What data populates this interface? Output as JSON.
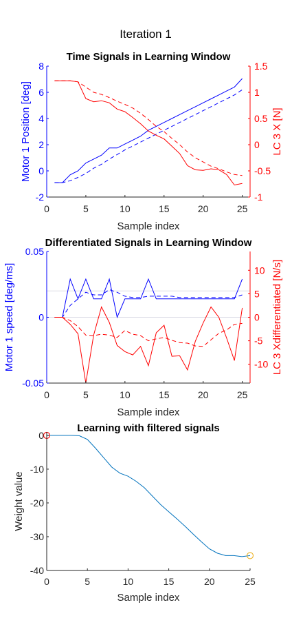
{
  "figure_title": "Iteration 1",
  "colors": {
    "left_axis": "#0000ff",
    "right_axis": "#ff0000",
    "weight_line": "#0072bd",
    "start_marker": "#ff0000",
    "end_marker": "#edb120",
    "axes": "#262626",
    "zero_line": "#dcdce6"
  },
  "chart_data": [
    {
      "type": "line",
      "title": "Time Signals in Learning Window",
      "xlabel": "Sample index",
      "ylabel": "Motor 1 Position [deg]",
      "y2label": "LC 3 X [N]",
      "xlim": [
        0,
        26
      ],
      "ylim": [
        -2,
        8
      ],
      "y2lim": [
        -1,
        1.5
      ],
      "xticks": [
        "0",
        "5",
        "10",
        "15",
        "20",
        "25"
      ],
      "yticks": [
        "-2",
        "0",
        "2",
        "4",
        "6",
        "8"
      ],
      "y2ticks": [
        "-1",
        "-0.5",
        "0",
        "0.5",
        "1",
        "1.5"
      ],
      "x": [
        1,
        2,
        3,
        4,
        5,
        6,
        7,
        8,
        9,
        10,
        11,
        12,
        13,
        14,
        15,
        16,
        17,
        18,
        19,
        20,
        21,
        22,
        23,
        24,
        25
      ],
      "series": [
        {
          "axis": "left",
          "style": "solid",
          "values": [
            -0.9,
            -0.9,
            -0.3,
            0.0,
            0.6,
            0.9,
            1.2,
            1.75,
            1.75,
            2.05,
            2.35,
            2.65,
            3.1,
            3.4,
            3.7,
            4.0,
            4.3,
            4.6,
            4.9,
            5.2,
            5.5,
            5.8,
            6.1,
            6.4,
            7.05
          ]
        },
        {
          "axis": "left",
          "style": "dashed",
          "values": [
            -0.9,
            -0.9,
            -0.75,
            -0.5,
            -0.2,
            0.2,
            0.5,
            0.9,
            1.25,
            1.6,
            1.9,
            2.2,
            2.5,
            2.8,
            3.1,
            3.4,
            3.7,
            4.0,
            4.3,
            4.6,
            4.9,
            5.2,
            5.5,
            5.8,
            6.2
          ]
        },
        {
          "axis": "right",
          "style": "solid",
          "values": [
            1.22,
            1.22,
            1.22,
            1.2,
            0.88,
            0.82,
            0.84,
            0.8,
            0.68,
            0.63,
            0.52,
            0.4,
            0.26,
            0.18,
            0.11,
            -0.03,
            -0.17,
            -0.4,
            -0.48,
            -0.49,
            -0.46,
            -0.48,
            -0.57,
            -0.77,
            -0.74
          ]
        },
        {
          "axis": "right",
          "style": "dashed",
          "values": [
            1.22,
            1.22,
            1.22,
            1.2,
            1.1,
            1.0,
            0.96,
            0.9,
            0.83,
            0.77,
            0.7,
            0.6,
            0.48,
            0.35,
            0.25,
            0.12,
            0.0,
            -0.14,
            -0.25,
            -0.33,
            -0.41,
            -0.46,
            -0.52,
            -0.57,
            -0.59
          ]
        }
      ]
    },
    {
      "type": "line",
      "title": "Differentiated Signals in Learning Window",
      "xlabel": "Sample index",
      "ylabel": "Motor 1 speed [deg/ms]",
      "y2label": "LC 3 Xdifferentiated [N/s]",
      "xlim": [
        0,
        26
      ],
      "ylim": [
        -0.05,
        0.05
      ],
      "y2lim": [
        -14,
        14
      ],
      "xticks": [
        "0",
        "5",
        "10",
        "15",
        "20",
        "25"
      ],
      "yticks": [
        "-0.05",
        "0",
        "0.05"
      ],
      "y2ticks": [
        "-10",
        "-5",
        "0",
        "5",
        "10"
      ],
      "x": [
        1,
        2,
        3,
        4,
        5,
        6,
        7,
        8,
        9,
        10,
        11,
        12,
        13,
        14,
        15,
        16,
        17,
        18,
        19,
        20,
        21,
        22,
        23,
        24,
        25
      ],
      "series": [
        {
          "axis": "left",
          "style": "solid",
          "values": [
            0,
            0,
            0.029,
            0.014,
            0.029,
            0.014,
            0.014,
            0.029,
            0,
            0.014,
            0.014,
            0.014,
            0.029,
            0.014,
            0.014,
            0.014,
            0.014,
            0.014,
            0.014,
            0.014,
            0.014,
            0.014,
            0.014,
            0.014,
            0.029
          ]
        },
        {
          "axis": "left",
          "style": "dashed",
          "values": [
            0,
            0,
            0.009,
            0.014,
            0.019,
            0.017,
            0.017,
            0.021,
            0.019,
            0.016,
            0.015,
            0.015,
            0.016,
            0.016,
            0.016,
            0.016,
            0.015,
            0.015,
            0.015,
            0.015,
            0.015,
            0.015,
            0.015,
            0.015,
            0.017
          ]
        },
        {
          "axis": "right",
          "style": "solid",
          "values": [
            0,
            0,
            -1.5,
            -3.5,
            -14,
            -3.8,
            2.2,
            -1.1,
            -6,
            -7.3,
            -8,
            -6.2,
            -10.3,
            -3.3,
            -1.7,
            -8.3,
            -8.2,
            -11.2,
            -5.1,
            -1.2,
            2.2,
            0,
            -4.4,
            -9.2,
            2
          ]
        },
        {
          "axis": "right",
          "style": "dashed",
          "values": [
            0,
            0,
            -0.7,
            -2,
            -3.8,
            -3.9,
            -3.6,
            -3.8,
            -4.3,
            -2.8,
            -3.6,
            -3.9,
            -5,
            -4.6,
            -4.3,
            -4.9,
            -5.4,
            -5.5,
            -6.1,
            -6.2,
            -4.8,
            -3.4,
            -2.7,
            -1.5,
            -1.3
          ]
        }
      ]
    },
    {
      "type": "line",
      "title": "Learning with filtered signals",
      "xlabel": "Sample index",
      "ylabel": "Weight value",
      "xlim": [
        0,
        25
      ],
      "ylim": [
        -40,
        1
      ],
      "xticks": [
        "0",
        "5",
        "10",
        "15",
        "20",
        "25"
      ],
      "yticks": [
        "-40",
        "-30",
        "-20",
        "-10",
        "0"
      ],
      "x": [
        0,
        1,
        2,
        3,
        4,
        5,
        6,
        7,
        8,
        9,
        10,
        11,
        12,
        13,
        14,
        15,
        16,
        17,
        18,
        19,
        20,
        21,
        22,
        23,
        24,
        25
      ],
      "series": [
        {
          "axis": "left",
          "style": "solid",
          "values": [
            0,
            0,
            0,
            0,
            -0.1,
            -1.2,
            -3.8,
            -6.6,
            -9.4,
            -11.2,
            -12.1,
            -13.6,
            -15.5,
            -18,
            -20.5,
            -22.6,
            -24.7,
            -26.9,
            -29.2,
            -31.5,
            -33.6,
            -34.9,
            -35.6,
            -35.6,
            -35.9,
            -35.6
          ]
        }
      ],
      "markers": [
        {
          "x": 0,
          "y": 0,
          "kind": "start"
        },
        {
          "x": 25,
          "y": -35.6,
          "kind": "end"
        }
      ]
    }
  ]
}
